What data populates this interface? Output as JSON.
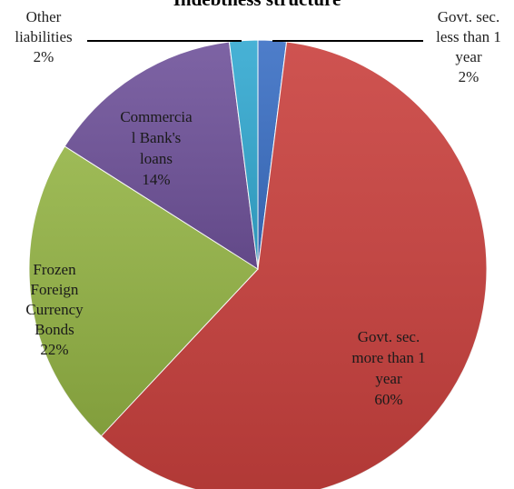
{
  "chart_data": {
    "type": "pie",
    "title": "Indebtness structure",
    "slices": [
      {
        "name": "Govt. sec. less than 1 year",
        "value": 2,
        "percent_label": "2%",
        "color": "#3a6fc4"
      },
      {
        "name": "Govt. sec. more than 1 year",
        "value": 60,
        "percent_label": "60%",
        "color": "#c9403d"
      },
      {
        "name": "Frozen Foreign Currency Bonds",
        "value": 22,
        "percent_label": "22%",
        "color": "#93b344"
      },
      {
        "name": "Commercial Bank's loans",
        "value": 14,
        "percent_label": "14%",
        "color": "#6f529a"
      },
      {
        "name": "Other liabilities",
        "value": 2,
        "percent_label": "2%",
        "color": "#33a9d1"
      }
    ],
    "labels": [
      {
        "lines": [
          "Govt. sec.",
          "less than 1",
          "year",
          "2%"
        ]
      },
      {
        "lines": [
          "Govt. sec.",
          "more than 1",
          "year",
          "60%"
        ]
      },
      {
        "lines": [
          "Frozen",
          "Foreign",
          "Currency",
          "Bonds",
          "22%"
        ]
      },
      {
        "lines": [
          "Commercia",
          "l Bank's",
          "loans",
          "14%"
        ]
      },
      {
        "lines": [
          "Other",
          "liabilities",
          "2%"
        ]
      }
    ],
    "legend": "none"
  }
}
